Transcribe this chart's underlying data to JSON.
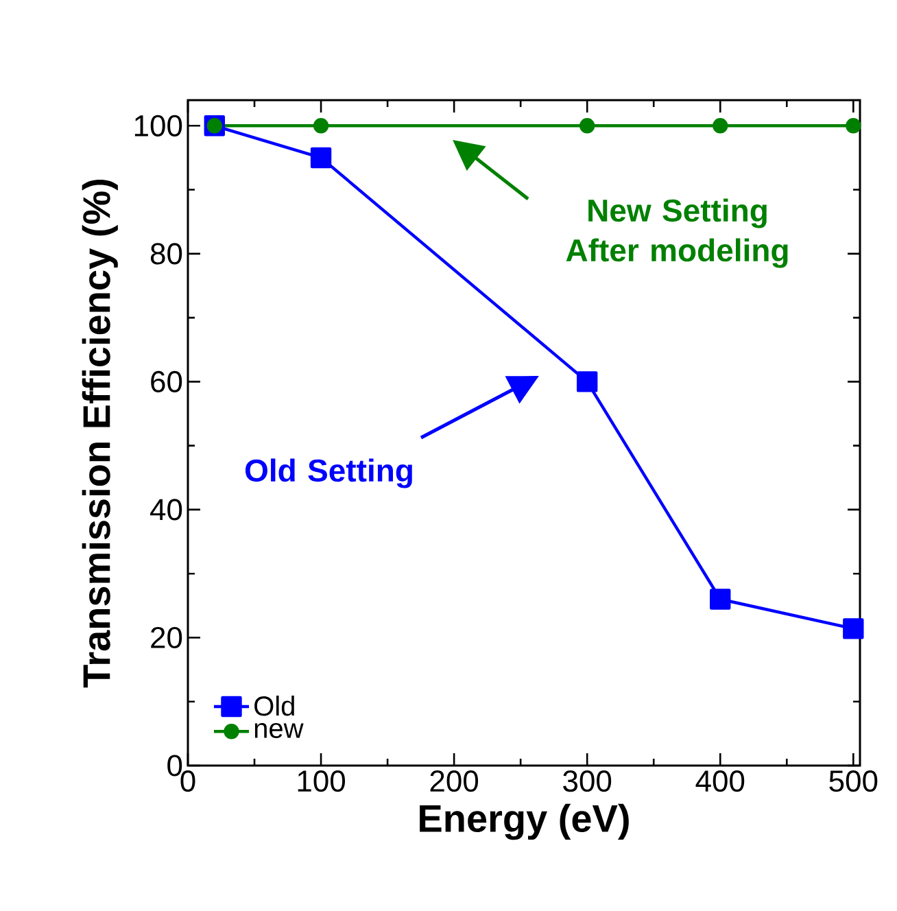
{
  "chart_data": {
    "type": "line",
    "xlabel": "Energy (eV)",
    "ylabel": "Transmission Efficiency (%)",
    "xlim": [
      0,
      505
    ],
    "ylim": [
      0,
      104
    ],
    "xticks": [
      0,
      100,
      200,
      300,
      400,
      500
    ],
    "yticks": [
      0,
      20,
      40,
      60,
      80,
      100
    ],
    "legend": "bottom left",
    "series": [
      {
        "name": "Old",
        "color": "#0000ff",
        "marker": "square",
        "x": [
          20,
          100,
          300,
          400,
          500
        ],
        "values": [
          100,
          95,
          60,
          26,
          21.4
        ]
      },
      {
        "name": "new",
        "color": "#008000",
        "marker": "circle",
        "x": [
          20,
          100,
          300,
          400,
          500
        ],
        "values": [
          100,
          100,
          100,
          100,
          100
        ]
      }
    ],
    "annotations": [
      "Old Setting",
      "New Setting After modeling"
    ]
  }
}
